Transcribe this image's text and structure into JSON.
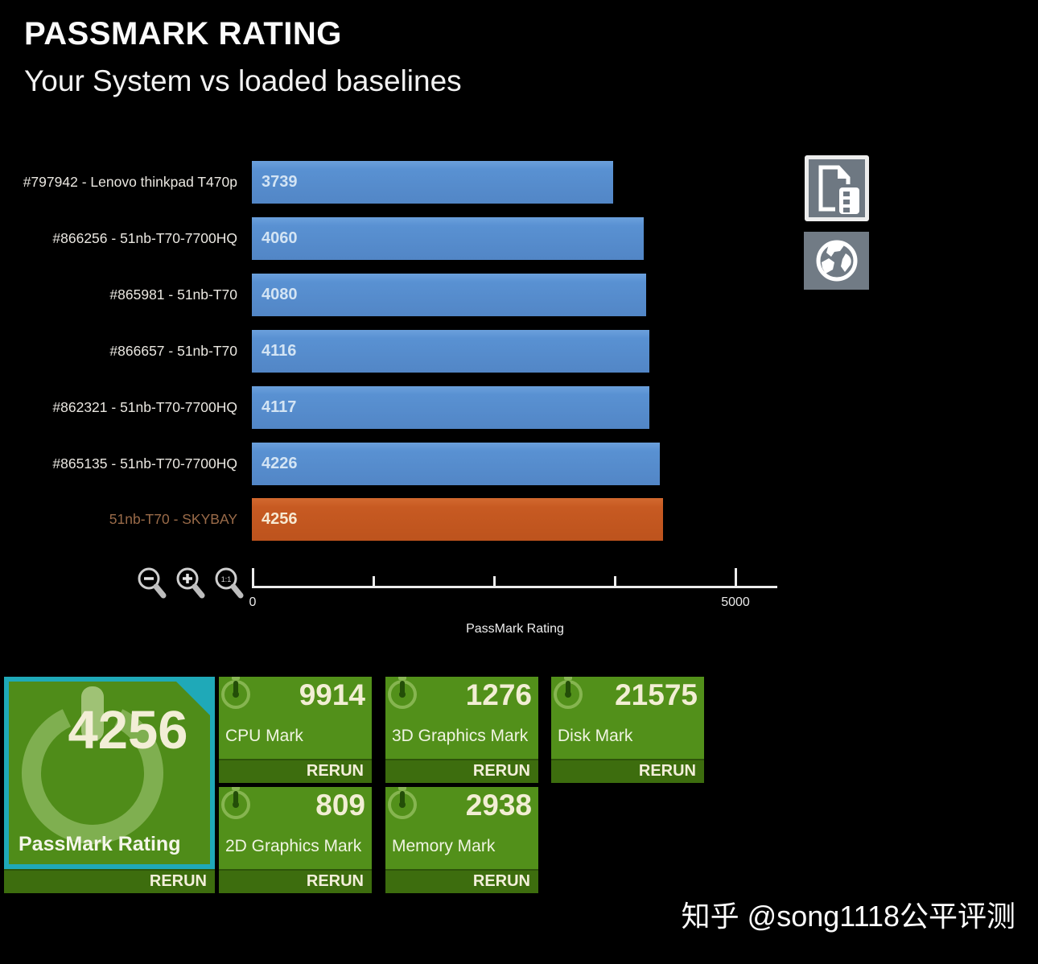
{
  "header": {
    "title": "PASSMARK RATING",
    "subtitle": "Your System vs loaded baselines"
  },
  "chart_data": {
    "type": "bar",
    "orientation": "horizontal",
    "categories": [
      "#797942 - Lenovo thinkpad T470p",
      "#866256 - 51nb-T70-7700HQ",
      "#865981 - 51nb-T70",
      "#866657 - 51nb-T70",
      "#862321 - 51nb-T70-7700HQ",
      "#865135 - 51nb-T70-7700HQ",
      "51nb-T70 - SKYBAY"
    ],
    "values": [
      3739,
      4060,
      4080,
      4116,
      4117,
      4226,
      4256
    ],
    "highlight_index": 6,
    "xlabel": "PassMark Rating",
    "xlim": [
      0,
      5000
    ],
    "ticks": [
      0,
      1250,
      2500,
      3750,
      5000
    ],
    "tick_labels": {
      "min": "0",
      "max": "5000"
    },
    "bar_color": "#5991d2",
    "highlight_color": "#c75a22"
  },
  "toolbar": {
    "zoom_reset_label": "1:1"
  },
  "tiles": {
    "main": {
      "value": "4256",
      "label": "PassMark Rating",
      "rerun_label": "RERUN"
    },
    "small": [
      {
        "value": "9914",
        "label": "CPU Mark",
        "rerun_label": "RERUN"
      },
      {
        "value": "1276",
        "label": "3D Graphics Mark",
        "rerun_label": "RERUN"
      },
      {
        "value": "21575",
        "label": "Disk Mark",
        "rerun_label": "RERUN"
      },
      {
        "value": "809",
        "label": "2D Graphics Mark",
        "rerun_label": "RERUN"
      },
      {
        "value": "2938",
        "label": "Memory Mark",
        "rerun_label": "RERUN"
      }
    ]
  },
  "watermark": "知乎 @song1118公平评测",
  "colors": {
    "background": "#000000",
    "bar_blue": "#5991d2",
    "bar_orange": "#c75a22",
    "tile_green": "#52901a",
    "tile_rerun_green": "#3d6d0e",
    "tile_teal_border": "#1fa9b8",
    "skybay_label": "#9a6b49"
  }
}
